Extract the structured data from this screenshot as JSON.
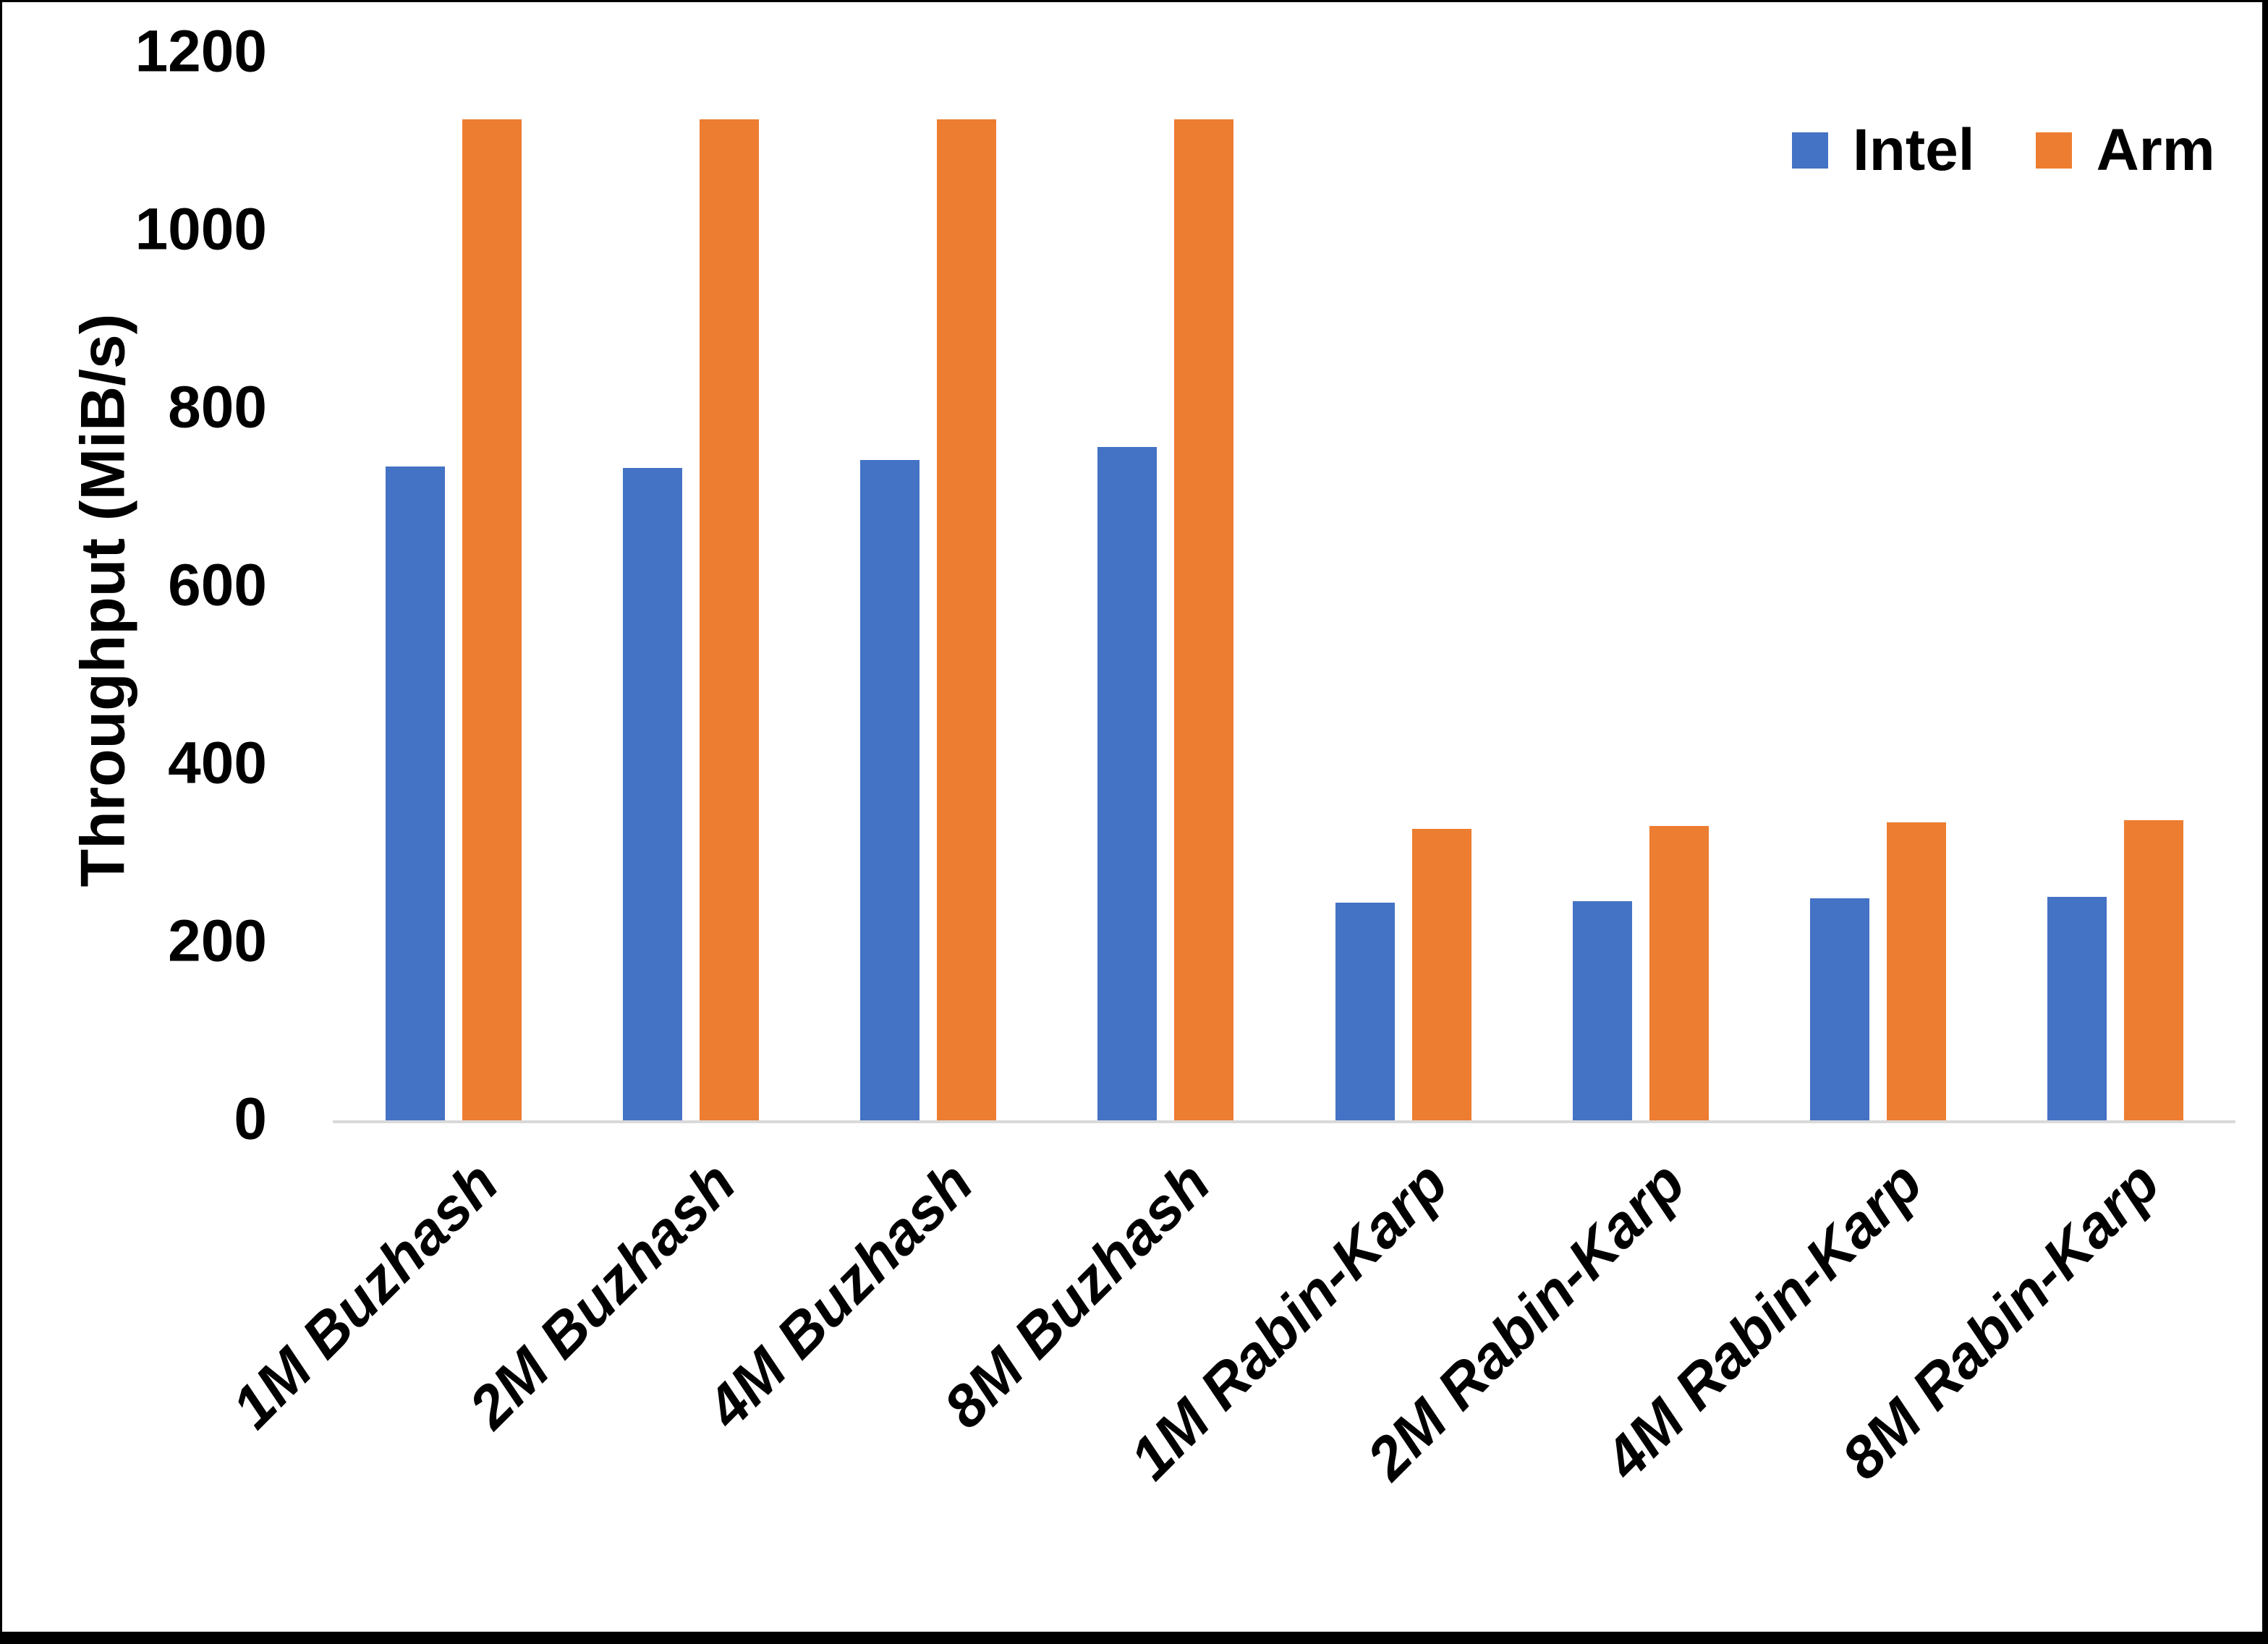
{
  "page": {
    "background": "#ffffff",
    "frame_color": "#000000"
  },
  "chart_data": {
    "type": "bar",
    "title": "",
    "xlabel": "",
    "ylabel": "Throughput (MiB/s)",
    "ylim": [
      0,
      1200
    ],
    "yticks": [
      0,
      200,
      400,
      600,
      800,
      1000,
      1200
    ],
    "grid": false,
    "legend_position": "top-right",
    "categories": [
      "1M Buzhash",
      "2M Buzhash",
      "4M Buzhash",
      "8M Buzhash",
      "1M Rabin-Karp",
      "2M Rabin-Karp",
      "4M Rabin-Karp",
      "8M Rabin-Karp"
    ],
    "series": [
      {
        "name": "Intel",
        "color": "#4472C4",
        "values": [
          735,
          733,
          742,
          757,
          245,
          246,
          250,
          251
        ]
      },
      {
        "name": "Arm",
        "color": "#ED7D31",
        "values": [
          1125,
          1125,
          1125,
          1125,
          328,
          331,
          335,
          337
        ]
      }
    ]
  }
}
